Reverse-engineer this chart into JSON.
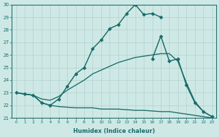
{
  "xlabel": "Humidex (Indice chaleur)",
  "ylabel": "",
  "background_color": "#cee9e5",
  "line_color": "#1a6b6b",
  "grid_color": "#b0d0cc",
  "xlim": [
    -0.5,
    23.5
  ],
  "ylim": [
    21,
    30
  ],
  "xticks": [
    0,
    1,
    2,
    3,
    4,
    5,
    6,
    7,
    8,
    9,
    10,
    11,
    12,
    13,
    14,
    15,
    16,
    17,
    18,
    19,
    20,
    21,
    22,
    23
  ],
  "yticks": [
    21,
    22,
    23,
    24,
    25,
    26,
    27,
    28,
    29,
    30
  ],
  "series": [
    {
      "x": [
        0,
        1,
        2,
        3,
        4,
        5,
        6,
        7,
        8,
        9,
        10,
        11,
        12,
        13,
        14,
        15,
        16,
        17
      ],
      "y": [
        23.0,
        22.9,
        22.8,
        22.2,
        22.0,
        22.5,
        23.5,
        24.5,
        25.0,
        26.5,
        27.2,
        28.1,
        28.4,
        29.3,
        30.0,
        29.2,
        29.3,
        29.0
      ],
      "marker": "D",
      "markersize": 2.5,
      "linewidth": 1.1
    },
    {
      "x": [
        16,
        17,
        18,
        19,
        20,
        21,
        22,
        23
      ],
      "y": [
        25.7,
        27.5,
        25.5,
        25.7,
        23.6,
        22.2,
        21.5,
        21.1
      ],
      "marker": "D",
      "markersize": 2.5,
      "linewidth": 1.1
    },
    {
      "x": [
        0,
        1,
        2,
        3,
        4,
        5,
        6,
        7,
        8,
        9,
        10,
        11,
        12,
        13,
        14,
        15,
        16,
        17,
        18,
        19,
        20,
        21,
        22,
        23
      ],
      "y": [
        23.0,
        22.9,
        22.8,
        22.5,
        22.4,
        22.7,
        23.2,
        23.6,
        24.0,
        24.5,
        24.8,
        25.1,
        25.4,
        25.6,
        25.8,
        25.9,
        26.0,
        26.1,
        26.1,
        25.5,
        23.8,
        22.3,
        21.5,
        21.1
      ],
      "marker": null,
      "linewidth": 1.0
    },
    {
      "x": [
        0,
        1,
        2,
        3,
        4,
        5,
        6,
        7,
        8,
        9,
        10,
        11,
        12,
        13,
        14,
        15,
        16,
        17,
        18,
        19,
        20,
        21,
        22,
        23
      ],
      "y": [
        23.0,
        22.9,
        22.8,
        22.2,
        22.0,
        21.9,
        21.85,
        21.8,
        21.8,
        21.8,
        21.7,
        21.7,
        21.7,
        21.65,
        21.6,
        21.6,
        21.55,
        21.5,
        21.5,
        21.4,
        21.3,
        21.2,
        21.1,
        21.0
      ],
      "marker": null,
      "linewidth": 1.0
    }
  ]
}
